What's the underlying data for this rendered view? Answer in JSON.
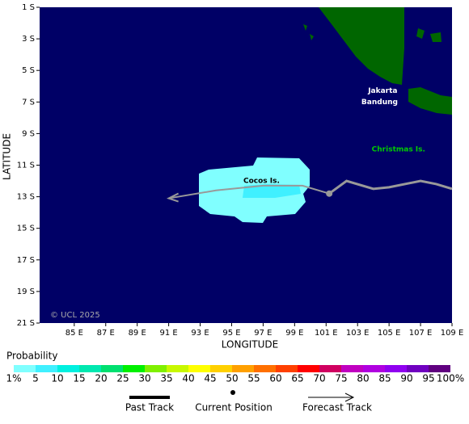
{
  "chart_data": {
    "type": "track-map",
    "x_label": "LONGITUDE",
    "y_label": "LATITUDE",
    "xlim": [
      82.8,
      109
    ],
    "ylim": [
      -21,
      -1
    ],
    "xticks": [
      {
        "value": 85,
        "label": "85 E"
      },
      {
        "value": 87,
        "label": "87 E"
      },
      {
        "value": 89,
        "label": "89 E"
      },
      {
        "value": 91,
        "label": "91 E"
      },
      {
        "value": 93,
        "label": "93 E"
      },
      {
        "value": 95,
        "label": "95 E"
      },
      {
        "value": 97,
        "label": "97 E"
      },
      {
        "value": 99,
        "label": "99 E"
      },
      {
        "value": 101,
        "label": "101 E"
      },
      {
        "value": 103,
        "label": "103 E"
      },
      {
        "value": 105,
        "label": "105 E"
      },
      {
        "value": 107,
        "label": "107 E"
      },
      {
        "value": 109,
        "label": "109 E"
      }
    ],
    "yticks": [
      {
        "value": -1,
        "label": "1 S"
      },
      {
        "value": -3,
        "label": "3 S"
      },
      {
        "value": -5,
        "label": "5 S"
      },
      {
        "value": -7,
        "label": "7 S"
      },
      {
        "value": -9,
        "label": "9 S"
      },
      {
        "value": -11,
        "label": "11 S"
      },
      {
        "value": -13,
        "label": "13 S"
      },
      {
        "value": -15,
        "label": "15 S"
      },
      {
        "value": -17,
        "label": "17 S"
      },
      {
        "value": -19,
        "label": "19 S"
      },
      {
        "value": -21,
        "label": "21 S"
      }
    ],
    "past_track": {
      "name": "Past Track",
      "lon": [
        109,
        108,
        107,
        105,
        104,
        102.3,
        101.2
      ],
      "lat": [
        -12.5,
        -12.2,
        -12,
        -12.4,
        -12.5,
        -12,
        -12.8
      ]
    },
    "current_position": {
      "name": "Current Position",
      "lon": 101.2,
      "lat": -12.8
    },
    "forecast_track": {
      "name": "Forecast Track",
      "lon": [
        101.2,
        99.5,
        97,
        94,
        91
      ],
      "lat": [
        -12.8,
        -12.3,
        -12.3,
        -12.6,
        -13.1
      ]
    },
    "places": [
      {
        "label": "Cocos Is.",
        "lon": 96.9,
        "lat": -12.0
      },
      {
        "label": "Christmas Is.",
        "lon": 105.6,
        "lat": -10.0
      },
      {
        "label": "Jakarta",
        "lon": 104.6,
        "lat": -6.3
      },
      {
        "label": "Bandung",
        "lon": 104.4,
        "lat": -7.0
      }
    ],
    "credit": "© UCL 2025",
    "legend": {
      "title": "Probability",
      "labels": [
        "1%",
        "5",
        "10",
        "15",
        "20",
        "25",
        "30",
        "35",
        "40",
        "45",
        "50",
        "55",
        "60",
        "65",
        "70",
        "75",
        "80",
        "85",
        "90",
        "95",
        "100%"
      ],
      "colors": [
        "#80ffff",
        "#40f0ff",
        "#00f0e0",
        "#00e8b0",
        "#00e070",
        "#00f000",
        "#80f000",
        "#c8f800",
        "#ffff00",
        "#ffd000",
        "#ffa000",
        "#ff7000",
        "#ff4000",
        "#ff0000",
        "#d00060",
        "#c000c0",
        "#b000e0",
        "#9000f0",
        "#7000c0",
        "#600080"
      ]
    }
  }
}
